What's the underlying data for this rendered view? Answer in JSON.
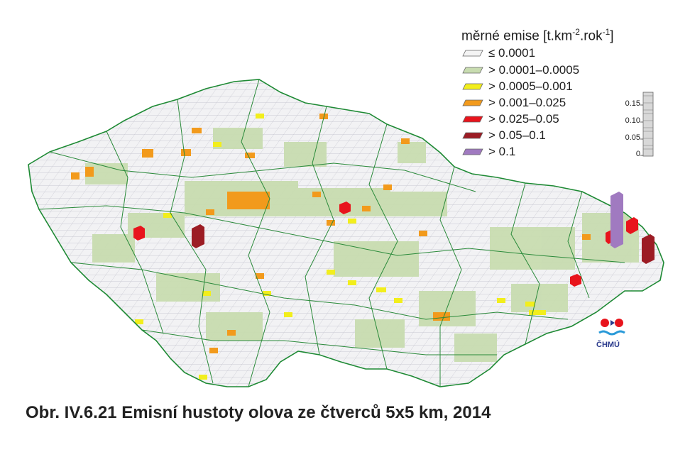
{
  "legend": {
    "title_main": "měrné emise [t.km",
    "title_sup1": "-2",
    "title_mid": ".rok",
    "title_sup2": "-1",
    "title_end": "]",
    "items": [
      {
        "label": "≤ 0.0001",
        "color": "#f4f4f4"
      },
      {
        "label": "> 0.0001–0.0005",
        "color": "#c8dcb0"
      },
      {
        "label": "> 0.0005–0.001",
        "color": "#f2ee1c"
      },
      {
        "label": "> 0.001–0.025",
        "color": "#f29a1c"
      },
      {
        "label": "> 0.025–0.05",
        "color": "#e8141c"
      },
      {
        "label": "> 0.05–0.1",
        "color": "#9c1c24"
      },
      {
        "label": "> 0.1",
        "color": "#a07ac0"
      }
    ]
  },
  "scale": {
    "ticks": [
      "0.15",
      "0.10",
      "0.05",
      "0"
    ]
  },
  "logo": {
    "text": "ČHMÚ"
  },
  "caption": "Obr. IV.6.21  Emisní hustoty olova ze čtverců 5x5 km, 2014"
}
